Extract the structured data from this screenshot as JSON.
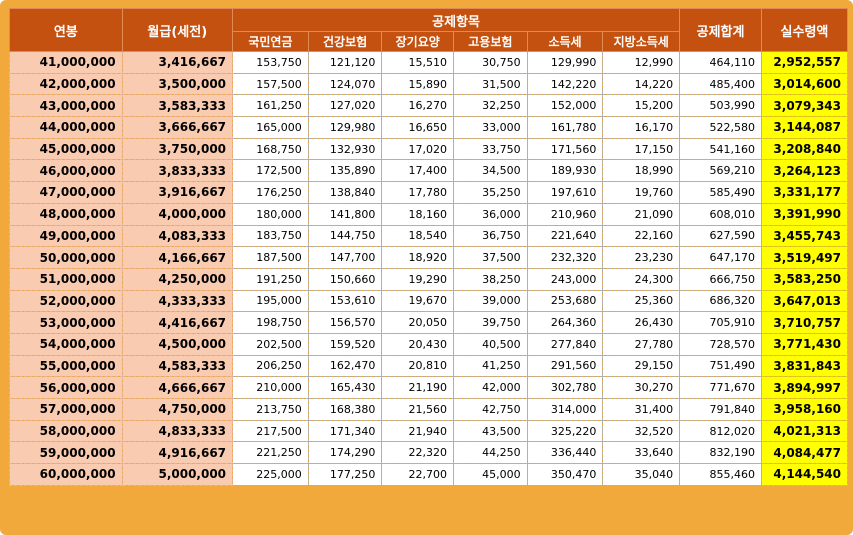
{
  "headers": {
    "annual": "연봉",
    "monthly": "월급(세전)",
    "deduction_group": "공제항목",
    "pension": "국민연금",
    "health": "건강보험",
    "care": "장기요양",
    "employment": "고용보험",
    "income_tax": "소득세",
    "local_tax": "지방소득세",
    "total_deduction": "공제합계",
    "net": "실수령액"
  },
  "colors": {
    "frame": "#f2a93b",
    "header_bg": "#c4510f",
    "salary_bg": "#f9cbb0",
    "net_bg": "#ffff00"
  },
  "rows": [
    [
      "41,000,000",
      "3,416,667",
      "153,750",
      "121,120",
      "15,510",
      "30,750",
      "129,990",
      "12,990",
      "464,110",
      "2,952,557"
    ],
    [
      "42,000,000",
      "3,500,000",
      "157,500",
      "124,070",
      "15,890",
      "31,500",
      "142,220",
      "14,220",
      "485,400",
      "3,014,600"
    ],
    [
      "43,000,000",
      "3,583,333",
      "161,250",
      "127,020",
      "16,270",
      "32,250",
      "152,000",
      "15,200",
      "503,990",
      "3,079,343"
    ],
    [
      "44,000,000",
      "3,666,667",
      "165,000",
      "129,980",
      "16,650",
      "33,000",
      "161,780",
      "16,170",
      "522,580",
      "3,144,087"
    ],
    [
      "45,000,000",
      "3,750,000",
      "168,750",
      "132,930",
      "17,020",
      "33,750",
      "171,560",
      "17,150",
      "541,160",
      "3,208,840"
    ],
    [
      "46,000,000",
      "3,833,333",
      "172,500",
      "135,890",
      "17,400",
      "34,500",
      "189,930",
      "18,990",
      "569,210",
      "3,264,123"
    ],
    [
      "47,000,000",
      "3,916,667",
      "176,250",
      "138,840",
      "17,780",
      "35,250",
      "197,610",
      "19,760",
      "585,490",
      "3,331,177"
    ],
    [
      "48,000,000",
      "4,000,000",
      "180,000",
      "141,800",
      "18,160",
      "36,000",
      "210,960",
      "21,090",
      "608,010",
      "3,391,990"
    ],
    [
      "49,000,000",
      "4,083,333",
      "183,750",
      "144,750",
      "18,540",
      "36,750",
      "221,640",
      "22,160",
      "627,590",
      "3,455,743"
    ],
    [
      "50,000,000",
      "4,166,667",
      "187,500",
      "147,700",
      "18,920",
      "37,500",
      "232,320",
      "23,230",
      "647,170",
      "3,519,497"
    ],
    [
      "51,000,000",
      "4,250,000",
      "191,250",
      "150,660",
      "19,290",
      "38,250",
      "243,000",
      "24,300",
      "666,750",
      "3,583,250"
    ],
    [
      "52,000,000",
      "4,333,333",
      "195,000",
      "153,610",
      "19,670",
      "39,000",
      "253,680",
      "25,360",
      "686,320",
      "3,647,013"
    ],
    [
      "53,000,000",
      "4,416,667",
      "198,750",
      "156,570",
      "20,050",
      "39,750",
      "264,360",
      "26,430",
      "705,910",
      "3,710,757"
    ],
    [
      "54,000,000",
      "4,500,000",
      "202,500",
      "159,520",
      "20,430",
      "40,500",
      "277,840",
      "27,780",
      "728,570",
      "3,771,430"
    ],
    [
      "55,000,000",
      "4,583,333",
      "206,250",
      "162,470",
      "20,810",
      "41,250",
      "291,560",
      "29,150",
      "751,490",
      "3,831,843"
    ],
    [
      "56,000,000",
      "4,666,667",
      "210,000",
      "165,430",
      "21,190",
      "42,000",
      "302,780",
      "30,270",
      "771,670",
      "3,894,997"
    ],
    [
      "57,000,000",
      "4,750,000",
      "213,750",
      "168,380",
      "21,560",
      "42,750",
      "314,000",
      "31,400",
      "791,840",
      "3,958,160"
    ],
    [
      "58,000,000",
      "4,833,333",
      "217,500",
      "171,340",
      "21,940",
      "43,500",
      "325,220",
      "32,520",
      "812,020",
      "4,021,313"
    ],
    [
      "59,000,000",
      "4,916,667",
      "221,250",
      "174,290",
      "22,320",
      "44,250",
      "336,440",
      "33,640",
      "832,190",
      "4,084,477"
    ],
    [
      "60,000,000",
      "5,000,000",
      "225,000",
      "177,250",
      "22,700",
      "45,000",
      "350,470",
      "35,040",
      "855,460",
      "4,144,540"
    ]
  ]
}
